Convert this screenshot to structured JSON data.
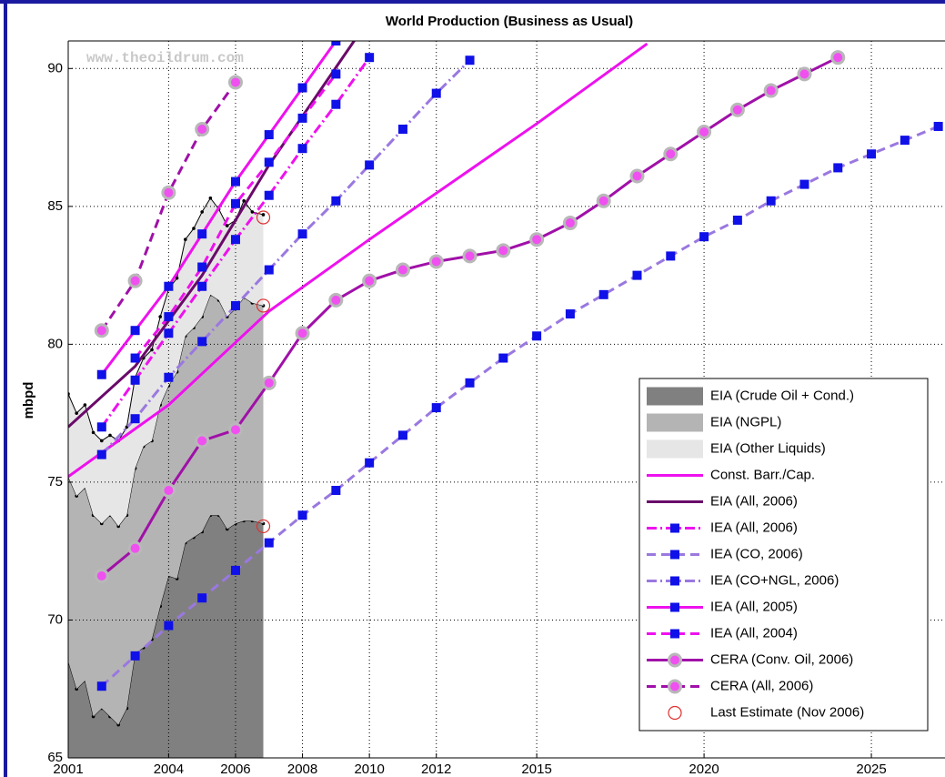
{
  "chart_data": {
    "type": "line",
    "title": "World Production (Business as Usual)",
    "ylabel": "mbpd",
    "watermark": "www.theoildrum.com",
    "xlim": [
      2001,
      2027.2
    ],
    "ylim": [
      65,
      91
    ],
    "xticks": [
      2001,
      2004,
      2006,
      2008,
      2010,
      2012,
      2015,
      2020,
      2025
    ],
    "yticks": [
      65,
      70,
      75,
      80,
      85,
      90
    ],
    "grid": true,
    "legend": "lower right",
    "series": [
      {
        "name": "EIA (Crude Oil + Cond.)",
        "style": "area",
        "color": "#808080",
        "x": [
          2001,
          2001.25,
          2001.5,
          2001.75,
          2002,
          2002.25,
          2002.5,
          2002.75,
          2003,
          2003.25,
          2003.5,
          2003.75,
          2004,
          2004.25,
          2004.5,
          2004.75,
          2005,
          2005.25,
          2005.5,
          2005.75,
          2006,
          2006.25,
          2006.5,
          2006.83
        ],
        "values": [
          68.5,
          67.5,
          67.8,
          66.5,
          66.8,
          66.5,
          66.2,
          66.8,
          68.8,
          69.0,
          69.3,
          70.5,
          71.6,
          71.5,
          72.8,
          73.0,
          73.2,
          73.8,
          73.8,
          73.3,
          73.5,
          73.6,
          73.6,
          73.5
        ]
      },
      {
        "name": "EIA (NGPL)",
        "style": "area",
        "color": "#b4b4b4",
        "x": [
          2001,
          2001.25,
          2001.5,
          2001.75,
          2002,
          2002.25,
          2002.5,
          2002.75,
          2003,
          2003.25,
          2003.5,
          2003.75,
          2004,
          2004.25,
          2004.5,
          2004.75,
          2005,
          2005.25,
          2005.5,
          2005.75,
          2006,
          2006.25,
          2006.5,
          2006.83
        ],
        "values": [
          6.7,
          7.0,
          7.0,
          7.3,
          6.7,
          7.3,
          7.2,
          7.0,
          6.7,
          7.3,
          7.2,
          7.3,
          6.9,
          7.5,
          7.5,
          7.6,
          7.8,
          8.0,
          7.8,
          7.7,
          7.8,
          8.1,
          7.9,
          7.9
        ]
      },
      {
        "name": "EIA (Other Liquids)",
        "style": "area",
        "color": "#e6e6e6",
        "x": [
          2001,
          2001.25,
          2001.5,
          2001.75,
          2002,
          2002.25,
          2002.5,
          2002.75,
          2003,
          2003.25,
          2003.5,
          2003.75,
          2004,
          2004.25,
          2004.5,
          2004.75,
          2005,
          2005.25,
          2005.5,
          2005.75,
          2006,
          2006.25,
          2006.5,
          2006.83
        ],
        "values": [
          3.0,
          3.0,
          3.0,
          3.0,
          3.0,
          2.9,
          3.1,
          3.2,
          3.3,
          3.2,
          3.3,
          3.2,
          3.5,
          3.4,
          3.5,
          3.6,
          3.8,
          3.5,
          3.3,
          3.3,
          3.2,
          3.5,
          3.3,
          3.3
        ]
      },
      {
        "name": "Const. Barr./Cap.",
        "style": "solid",
        "color": "#ee11ee",
        "x": [
          2001,
          2004,
          2007,
          2010,
          2015,
          2018.3
        ],
        "values": [
          75.2,
          77.8,
          81.2,
          83.8,
          88.0,
          90.9
        ]
      },
      {
        "name": "EIA (All, 2006)",
        "style": "solid",
        "color": "#6a0a6a",
        "x": [
          2001,
          2003,
          2005,
          2007,
          2009.6
        ],
        "values": [
          77.0,
          79.2,
          82.5,
          86.5,
          91.1
        ]
      },
      {
        "name": "IEA (All, 2006)",
        "style": "dashdot",
        "color": "#ee11ee",
        "marker": "square",
        "marker_color": "#1010e8",
        "x": [
          2002,
          2003,
          2004,
          2005,
          2006,
          2007,
          2008,
          2009,
          2010
        ],
        "values": [
          77.0,
          78.7,
          80.4,
          82.1,
          83.8,
          85.4,
          87.1,
          88.7,
          90.4
        ]
      },
      {
        "name": "IEA (CO, 2006)",
        "style": "dashed",
        "color": "#9a78e0",
        "marker": "square",
        "marker_color": "#1010e8",
        "x": [
          2002,
          2003,
          2004,
          2005,
          2006,
          2007,
          2008,
          2009,
          2010,
          2011,
          2012,
          2013,
          2014,
          2015,
          2016,
          2017,
          2018,
          2019,
          2020,
          2021,
          2022,
          2023,
          2024,
          2025,
          2026,
          2027
        ],
        "values": [
          67.6,
          68.7,
          69.8,
          70.8,
          71.8,
          72.8,
          73.8,
          74.7,
          75.7,
          76.7,
          77.7,
          78.6,
          79.5,
          80.3,
          81.1,
          81.8,
          82.5,
          83.2,
          83.9,
          84.5,
          85.2,
          85.8,
          86.4,
          86.9,
          87.4,
          87.9
        ]
      },
      {
        "name": "IEA (CO+NGL, 2006)",
        "style": "dashdot",
        "color": "#9a78e0",
        "marker": "square",
        "marker_color": "#1010e8",
        "x": [
          2002,
          2003,
          2004,
          2005,
          2006,
          2007,
          2008,
          2009,
          2010,
          2011,
          2012,
          2013
        ],
        "values": [
          76.0,
          77.3,
          78.8,
          80.1,
          81.4,
          82.7,
          84.0,
          85.2,
          86.5,
          87.8,
          89.1,
          90.3
        ]
      },
      {
        "name": "IEA (All, 2005)",
        "style": "solid",
        "color": "#ee11ee",
        "marker": "square",
        "marker_color": "#1010e8",
        "x": [
          2002,
          2003,
          2004,
          2005,
          2006,
          2007,
          2008,
          2009
        ],
        "values": [
          78.9,
          80.5,
          82.1,
          84.0,
          85.9,
          87.6,
          89.3,
          91.0
        ]
      },
      {
        "name": "IEA (All, 2004)",
        "style": "dashed",
        "color": "#ee11ee",
        "marker": "square",
        "marker_color": "#1010e8",
        "x": [
          2003,
          2004,
          2005,
          2006,
          2007,
          2008,
          2009
        ],
        "values": [
          79.5,
          81.0,
          82.8,
          85.1,
          86.6,
          88.2,
          89.8
        ]
      },
      {
        "name": "CERA (Conv. Oil, 2006)",
        "style": "solid",
        "color": "#a010a8",
        "marker": "circle",
        "marker_color": "#f050f0",
        "x": [
          2002,
          2003,
          2004,
          2005,
          2006,
          2007,
          2008,
          2009,
          2010,
          2011,
          2012,
          2013,
          2014,
          2015,
          2016,
          2017,
          2018,
          2019,
          2020,
          2021,
          2022,
          2023,
          2024
        ],
        "values": [
          71.6,
          72.6,
          74.7,
          76.5,
          76.9,
          78.6,
          80.4,
          81.6,
          82.3,
          82.7,
          83.0,
          83.2,
          83.4,
          83.8,
          84.4,
          85.2,
          86.1,
          86.9,
          87.7,
          88.5,
          89.2,
          89.8,
          90.4
        ]
      },
      {
        "name": "CERA (All, 2006)",
        "style": "dashed",
        "color": "#a010a8",
        "marker": "circle",
        "marker_color": "#f050f0",
        "x": [
          2002,
          2003,
          2004,
          2005,
          2006
        ],
        "values": [
          80.5,
          82.3,
          85.5,
          87.8,
          89.5
        ]
      },
      {
        "name": "Last Estimate (Nov 2006)",
        "style": "none",
        "color": "#e03030",
        "marker": "ring",
        "x": [
          2006.83,
          2006.83,
          2006.83
        ],
        "values": [
          73.4,
          81.4,
          84.6
        ]
      }
    ]
  }
}
